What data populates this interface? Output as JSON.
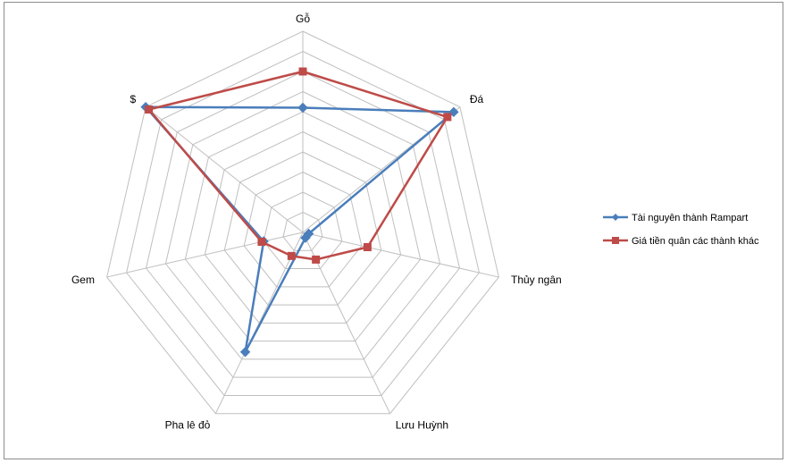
{
  "chart_data": {
    "type": "radar",
    "title": "",
    "categories": [
      "Gỗ",
      "Đá",
      "Thủy ngân",
      "Lưu Huỳnh",
      "Pha lê đỏ",
      "Gem",
      "$"
    ],
    "rlim": [
      0,
      10
    ],
    "grid": true,
    "legend_position": "right",
    "series": [
      {
        "name": "Tài nguyên thành Rampart",
        "color": "#4a7ebb",
        "marker": "diamond",
        "values": [
          6.2,
          9.6,
          0.3,
          0.3,
          6.6,
          2.0,
          10.0
        ]
      },
      {
        "name": "Giá tiền quân các thành khác",
        "color": "#be4b48",
        "marker": "square",
        "values": [
          8.0,
          9.2,
          3.3,
          1.5,
          1.3,
          2.1,
          9.8
        ]
      }
    ]
  }
}
